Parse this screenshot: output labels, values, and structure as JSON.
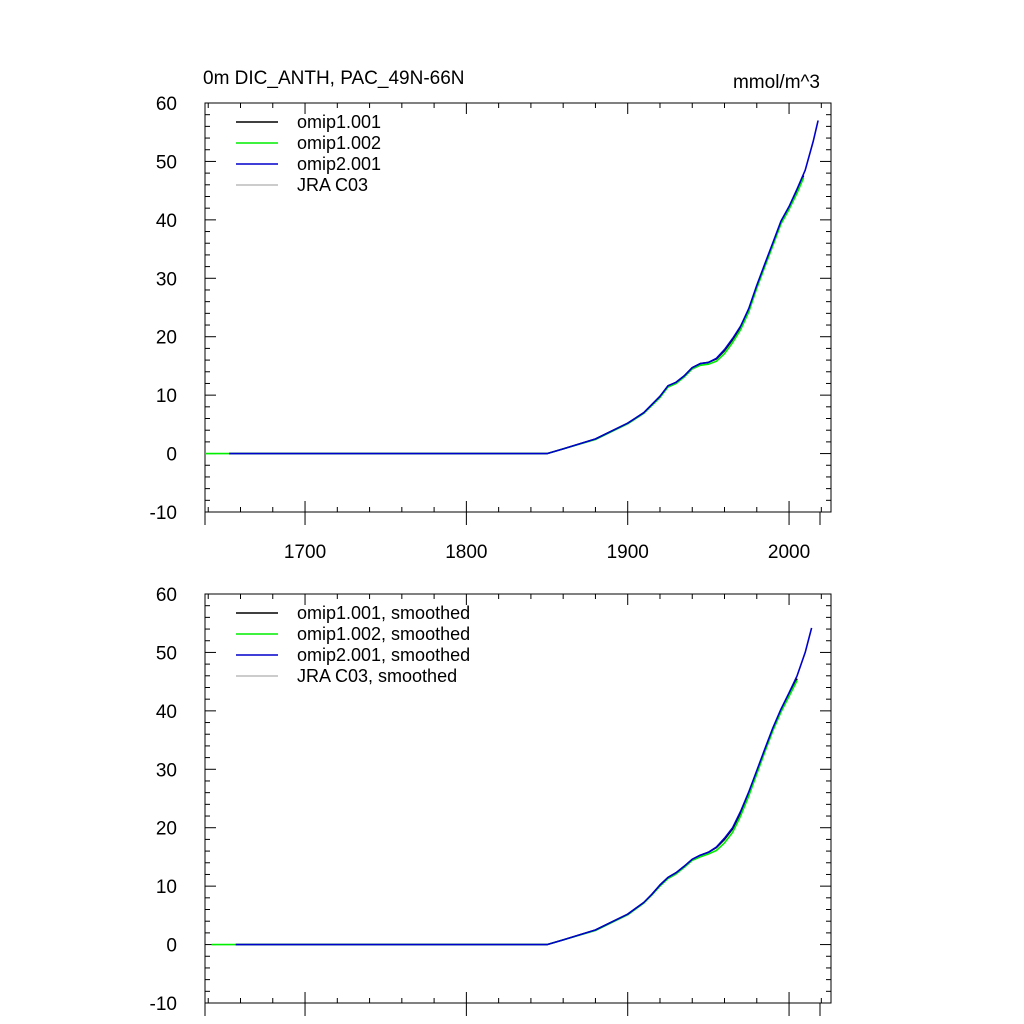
{
  "figure": {
    "title": "0m DIC_ANTH, PAC_49N-66N",
    "units": "mmol/m^3"
  },
  "chart_data": [
    {
      "type": "line",
      "title": "0m DIC_ANTH, PAC_49N-66N",
      "units_label": "mmol/m^3",
      "xlabel": "",
      "ylabel": "",
      "xlim": [
        1638,
        2026
      ],
      "ylim": [
        -10,
        60
      ],
      "x_ticks": [
        1700,
        1800,
        1900,
        2000
      ],
      "y_ticks": [
        -10,
        0,
        10,
        20,
        30,
        40,
        50,
        60
      ],
      "show_x_tick_labels": true,
      "grid": false,
      "legend_position": "top-left",
      "series": [
        {
          "name": "omip1.001",
          "color": "#000000",
          "x": [
            1653,
            1850,
            1860,
            1880,
            1900,
            1910,
            1920,
            1925,
            1930,
            1935,
            1940,
            1945,
            1950,
            1955,
            1960,
            1965,
            1970,
            1975,
            1980,
            1985,
            1990,
            1995,
            2000,
            2005,
            2009
          ],
          "y": [
            0,
            0,
            0.8,
            2.5,
            5.2,
            7.0,
            9.8,
            11.6,
            12.2,
            13.3,
            14.7,
            15.4,
            15.6,
            16.2,
            17.6,
            19.5,
            21.6,
            24.5,
            28.5,
            32.2,
            35.8,
            39.5,
            42.0,
            45.0,
            47.6
          ]
        },
        {
          "name": "omip1.002",
          "color": "#00ee00",
          "x": [
            1638,
            1850,
            1860,
            1880,
            1900,
            1910,
            1920,
            1925,
            1930,
            1935,
            1940,
            1945,
            1950,
            1955,
            1960,
            1965,
            1970,
            1975,
            1980,
            1985,
            1990,
            1995,
            2000,
            2005,
            2009
          ],
          "y": [
            0,
            0,
            0.8,
            2.4,
            5.1,
            6.9,
            9.6,
            11.4,
            12.0,
            13.1,
            14.5,
            15.1,
            15.3,
            15.8,
            17.1,
            19.0,
            21.2,
            24.2,
            28.3,
            32.0,
            35.6,
            39.3,
            41.8,
            44.6,
            47.2
          ]
        },
        {
          "name": "omip2.001",
          "color": "#0000cc",
          "x": [
            1653,
            1850,
            1860,
            1880,
            1900,
            1910,
            1920,
            1925,
            1930,
            1935,
            1940,
            1945,
            1950,
            1955,
            1960,
            1965,
            1970,
            1975,
            1980,
            1985,
            1990,
            1995,
            2000,
            2005,
            2010,
            2015,
            2018
          ],
          "y": [
            0,
            0,
            0.8,
            2.5,
            5.2,
            7.0,
            9.8,
            11.6,
            12.2,
            13.3,
            14.7,
            15.4,
            15.6,
            16.3,
            17.8,
            19.7,
            21.8,
            24.8,
            28.8,
            32.5,
            36.1,
            39.8,
            42.3,
            45.3,
            48.5,
            53.5,
            57.0
          ]
        },
        {
          "name": "JRA C03",
          "color": "#bbbbbb",
          "x": [],
          "y": []
        }
      ]
    },
    {
      "type": "line",
      "title": "",
      "xlabel": "",
      "ylabel": "",
      "xlim": [
        1638,
        2026
      ],
      "ylim": [
        -10,
        60
      ],
      "x_ticks": [
        1700,
        1800,
        1900,
        2000
      ],
      "y_ticks": [
        -10,
        0,
        10,
        20,
        30,
        40,
        50,
        60
      ],
      "show_x_tick_labels": false,
      "grid": false,
      "legend_position": "top-left",
      "series": [
        {
          "name": "omip1.001, smoothed",
          "color": "#000000",
          "x": [
            1657,
            1850,
            1860,
            1880,
            1900,
            1910,
            1915,
            1920,
            1925,
            1930,
            1935,
            1940,
            1945,
            1950,
            1955,
            1960,
            1965,
            1970,
            1975,
            1980,
            1985,
            1990,
            1995,
            2000,
            2005
          ],
          "y": [
            0,
            0,
            0.8,
            2.5,
            5.2,
            7.2,
            8.6,
            10.2,
            11.5,
            12.3,
            13.4,
            14.6,
            15.3,
            15.8,
            16.6,
            18.0,
            19.8,
            22.5,
            25.8,
            29.5,
            33.2,
            36.8,
            40.0,
            42.8,
            45.5
          ]
        },
        {
          "name": "omip1.002, smoothed",
          "color": "#00ee00",
          "x": [
            1642,
            1850,
            1860,
            1880,
            1900,
            1910,
            1915,
            1920,
            1925,
            1930,
            1935,
            1940,
            1945,
            1950,
            1955,
            1960,
            1965,
            1970,
            1975,
            1980,
            1985,
            1990,
            1995,
            2000,
            2005
          ],
          "y": [
            0,
            0,
            0.8,
            2.4,
            5.1,
            7.1,
            8.5,
            10.0,
            11.3,
            12.1,
            13.2,
            14.4,
            15.0,
            15.5,
            16.1,
            17.4,
            19.2,
            22.0,
            25.4,
            29.2,
            33.0,
            36.6,
            39.8,
            42.5,
            45.2
          ]
        },
        {
          "name": "omip2.001, smoothed",
          "color": "#0000cc",
          "x": [
            1657,
            1850,
            1860,
            1880,
            1900,
            1910,
            1915,
            1920,
            1925,
            1930,
            1935,
            1940,
            1945,
            1950,
            1955,
            1960,
            1965,
            1970,
            1975,
            1980,
            1985,
            1990,
            1995,
            2000,
            2005,
            2010,
            2014
          ],
          "y": [
            0,
            0,
            0.8,
            2.5,
            5.2,
            7.2,
            8.6,
            10.2,
            11.5,
            12.3,
            13.4,
            14.6,
            15.3,
            15.8,
            16.7,
            18.2,
            20.0,
            22.8,
            26.1,
            29.8,
            33.5,
            37.1,
            40.3,
            43.1,
            46.0,
            50.0,
            54.2
          ]
        },
        {
          "name": "JRA C03, smoothed",
          "color": "#bbbbbb",
          "x": [],
          "y": []
        }
      ]
    }
  ]
}
